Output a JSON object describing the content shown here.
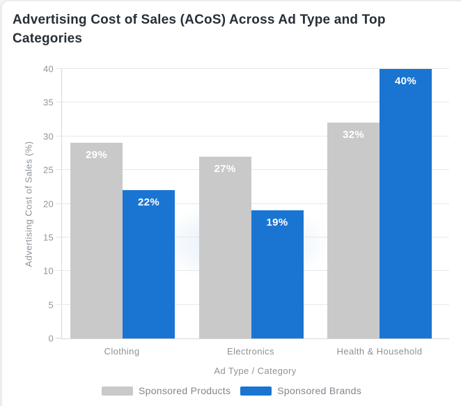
{
  "title": "Advertising Cost of Sales (ACoS) Across Ad Type and Top Categories",
  "chart_data": {
    "type": "bar",
    "title": "Advertising Cost of Sales (ACoS) Across Ad Type and Top Categories",
    "categories": [
      "Clothing",
      "Electronics",
      "Health & Household"
    ],
    "series": [
      {
        "name": "Sponsored Products",
        "color": "#c9c9c9",
        "values": [
          29,
          27,
          32
        ],
        "data_labels": [
          "29%",
          "27%",
          "32%"
        ]
      },
      {
        "name": "Sponsored Brands",
        "color": "#1a75d2",
        "values": [
          22,
          19,
          40
        ],
        "data_labels": [
          "22%",
          "19%",
          "40%"
        ]
      }
    ],
    "xlabel": "Ad Type / Category",
    "ylabel": "Advertising Cost of Sales (%)",
    "ylim": [
      0,
      40
    ],
    "yticks": [
      "0",
      "5",
      "10",
      "15",
      "20",
      "25",
      "30",
      "35",
      "40"
    ],
    "grid": "horizontal",
    "legend_position": "bottom",
    "data_label_color": "#ffffff"
  },
  "colors": {
    "title_text": "#272f38",
    "axis_text": "#8d9399",
    "gridline": "#e7e8e9",
    "axis_line": "#d6d7d8",
    "background": "#ffffff"
  }
}
